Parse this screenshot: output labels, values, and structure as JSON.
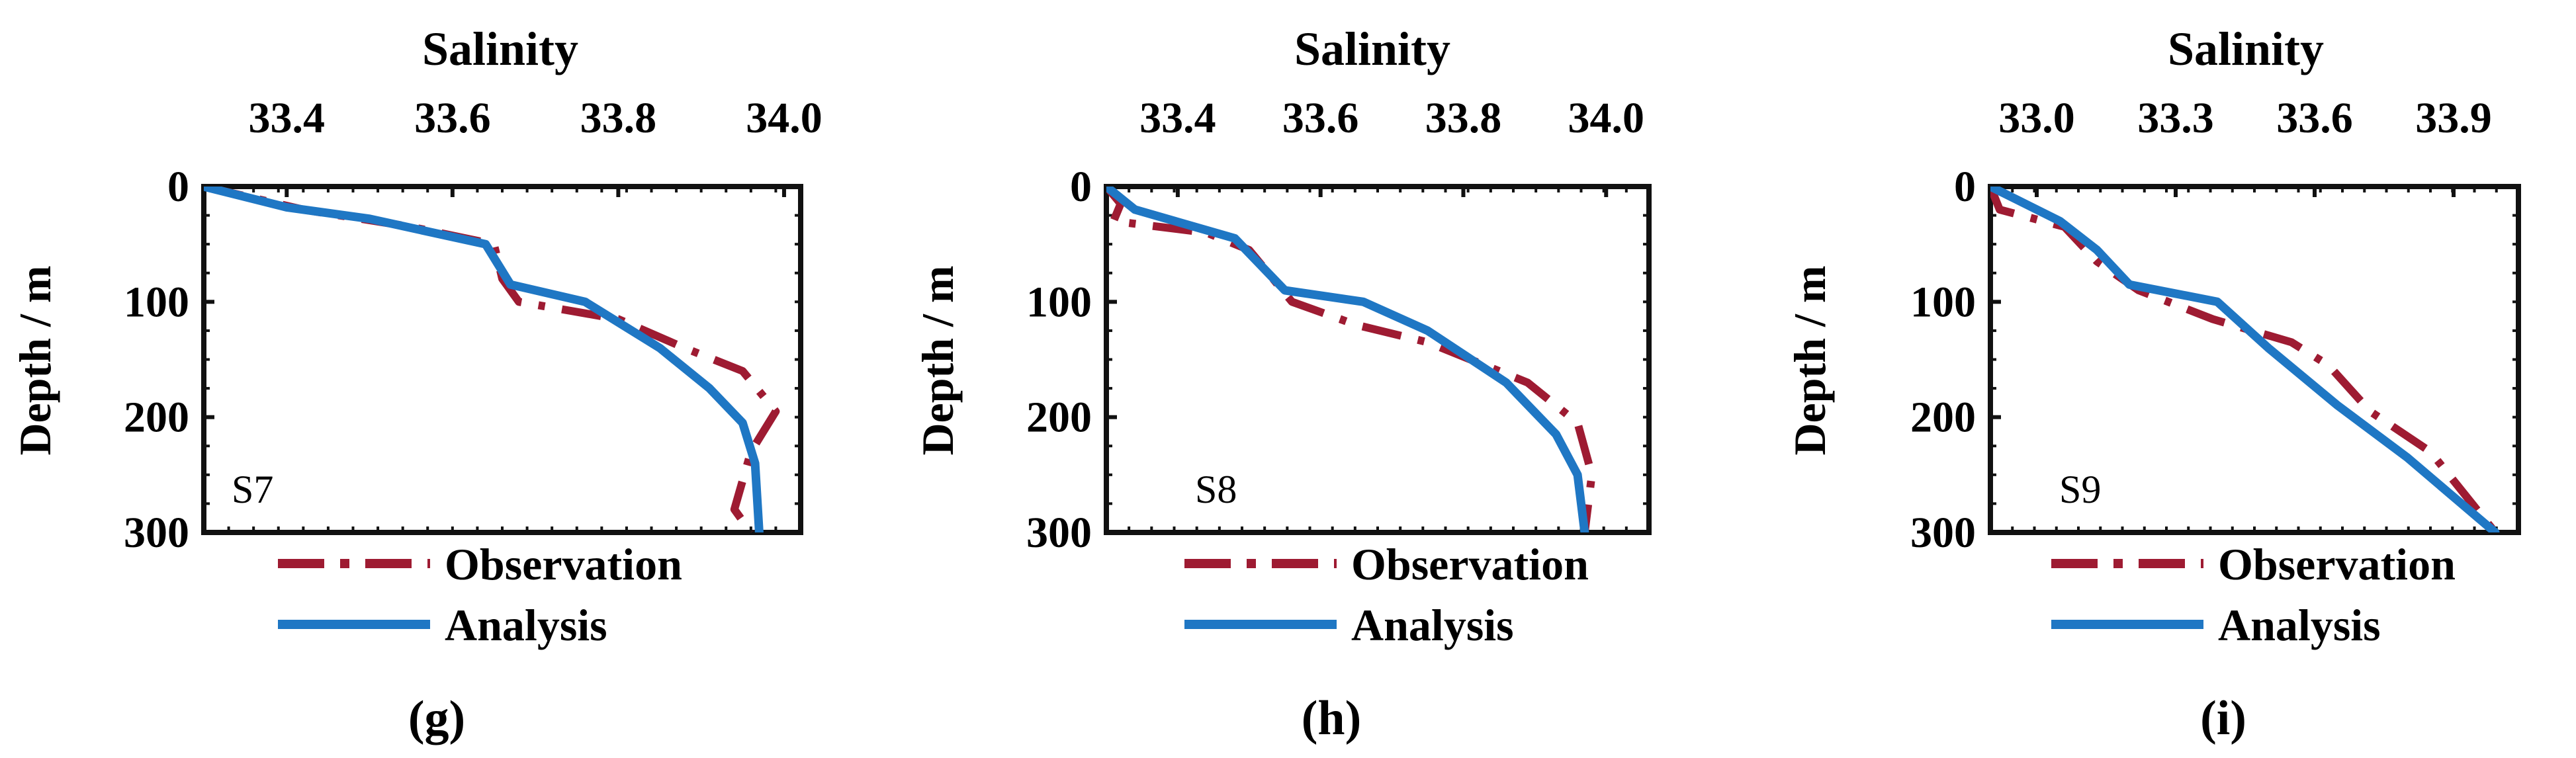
{
  "chart_data": [
    {
      "type": "line",
      "panel_label": "(g)",
      "station": "S7",
      "title": "Salinity",
      "xlabel": "Salinity",
      "ylabel": "Depth / m",
      "xlim": [
        33.3,
        34.02
      ],
      "ylim": [
        0,
        300
      ],
      "y_inverted": true,
      "x_axis_position": "top",
      "xticks": [
        33.4,
        33.6,
        33.8,
        34.0
      ],
      "xtick_labels": [
        "33.4",
        "33.6",
        "33.8",
        "34.0"
      ],
      "yticks": [
        0,
        100,
        200,
        300
      ],
      "ytick_labels": [
        "0",
        "100",
        "200",
        "300"
      ],
      "legend": {
        "position": "bottom",
        "entries": [
          "Observation",
          "Analysis"
        ]
      },
      "series": [
        {
          "name": "Observation",
          "style": "dash-dot",
          "color": "#9e1b32",
          "salinity": [
            33.3,
            33.42,
            33.55,
            33.65,
            33.66,
            33.68,
            33.8,
            33.88,
            33.95,
            33.99,
            33.96,
            33.94,
            33.96
          ],
          "depth": [
            0,
            20,
            35,
            50,
            80,
            100,
            115,
            140,
            160,
            195,
            230,
            280,
            300
          ]
        },
        {
          "name": "Analysis",
          "style": "solid",
          "color": "#1f77c4",
          "salinity": [
            33.3,
            33.4,
            33.5,
            33.64,
            33.67,
            33.76,
            33.85,
            33.91,
            33.95,
            33.965,
            33.97
          ],
          "depth": [
            0,
            18,
            28,
            50,
            85,
            100,
            140,
            175,
            205,
            240,
            300
          ]
        }
      ]
    },
    {
      "type": "line",
      "panel_label": "(h)",
      "station": "S8",
      "title": "Salinity",
      "xlabel": "Salinity",
      "ylabel": "Depth / m",
      "xlim": [
        33.3,
        34.06
      ],
      "ylim": [
        0,
        300
      ],
      "y_inverted": true,
      "x_axis_position": "top",
      "xticks": [
        33.4,
        33.6,
        33.8,
        34.0
      ],
      "xtick_labels": [
        "33.4",
        "33.6",
        "33.8",
        "34.0"
      ],
      "yticks": [
        0,
        100,
        200,
        300
      ],
      "ytick_labels": [
        "0",
        "100",
        "200",
        "300"
      ],
      "legend": {
        "position": "bottom",
        "entries": [
          "Observation",
          "Analysis"
        ]
      },
      "series": [
        {
          "name": "Observation",
          "style": "dash-dot",
          "color": "#9e1b32",
          "salinity": [
            33.3,
            33.32,
            33.31,
            33.44,
            33.5,
            33.56,
            33.65,
            33.75,
            33.89,
            33.96,
            33.98,
            33.97
          ],
          "depth": [
            0,
            15,
            30,
            40,
            55,
            100,
            120,
            135,
            170,
            205,
            250,
            300
          ]
        },
        {
          "name": "Analysis",
          "style": "solid",
          "color": "#1f77c4",
          "salinity": [
            33.3,
            33.34,
            33.48,
            33.55,
            33.66,
            33.75,
            33.86,
            33.93,
            33.96,
            33.97
          ],
          "depth": [
            0,
            20,
            45,
            90,
            100,
            125,
            170,
            215,
            250,
            300
          ]
        }
      ]
    },
    {
      "type": "line",
      "panel_label": "(i)",
      "station": "S9",
      "title": "Salinity",
      "xlabel": "Salinity",
      "ylabel": "Depth / m",
      "xlim": [
        32.9,
        34.04
      ],
      "ylim": [
        0,
        300
      ],
      "y_inverted": true,
      "x_axis_position": "top",
      "xticks": [
        33.0,
        33.3,
        33.6,
        33.9
      ],
      "xtick_labels": [
        "33.0",
        "33.3",
        "33.6",
        "33.9"
      ],
      "yticks": [
        0,
        100,
        200,
        300
      ],
      "ytick_labels": [
        "0",
        "100",
        "200",
        "300"
      ],
      "legend": {
        "position": "bottom",
        "entries": [
          "Observation",
          "Analysis"
        ]
      },
      "series": [
        {
          "name": "Observation",
          "style": "dash-dot",
          "color": "#9e1b32",
          "salinity": [
            32.9,
            32.92,
            33.06,
            33.13,
            33.22,
            33.38,
            33.55,
            33.63,
            33.72,
            33.85,
            33.99
          ],
          "depth": [
            0,
            20,
            35,
            65,
            90,
            115,
            135,
            155,
            195,
            230,
            300
          ]
        },
        {
          "name": "Analysis",
          "style": "solid",
          "color": "#1f77c4",
          "salinity": [
            32.9,
            33.05,
            33.13,
            33.2,
            33.39,
            33.5,
            33.65,
            33.8,
            33.99
          ],
          "depth": [
            0,
            30,
            55,
            85,
            100,
            140,
            190,
            235,
            300
          ]
        }
      ]
    }
  ]
}
